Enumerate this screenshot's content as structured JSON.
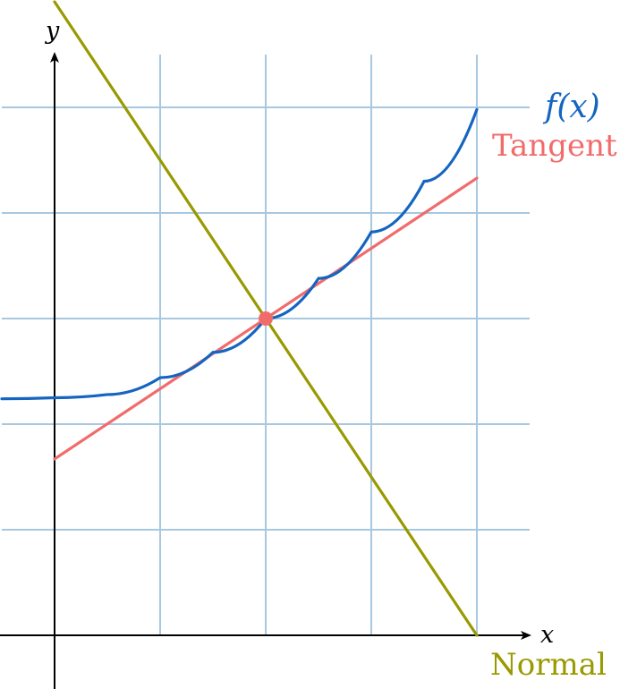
{
  "chart_data": {
    "type": "line",
    "xlim": [
      -0.5,
      4.5
    ],
    "ylim": [
      -0.5,
      6
    ],
    "grid": true,
    "xlabel": "x",
    "ylabel": "y",
    "point_of_tangency": {
      "x": 2,
      "y": 3
    },
    "series": [
      {
        "name": "f(x)",
        "color": "#1565c0",
        "x": [
          -0.5,
          0,
          0.5,
          1,
          1.5,
          2,
          2.5,
          3,
          3.5,
          4
        ],
        "y": [
          2.24,
          2.25,
          2.28,
          2.44,
          2.68,
          3.0,
          3.38,
          3.82,
          4.3,
          4.98
        ]
      },
      {
        "name": "Tangent",
        "color": "#f26b6b",
        "x": [
          0,
          4
        ],
        "y": [
          1.67,
          4.33
        ]
      },
      {
        "name": "Normal",
        "color": "#999900",
        "x": [
          0,
          4
        ],
        "y": [
          6,
          0
        ]
      }
    ]
  },
  "labels": {
    "x_axis": "x",
    "y_axis": "y",
    "fx": "f(x)",
    "tangent": "Tangent",
    "normal": "Normal"
  },
  "colors": {
    "grid": "#a7c8e1",
    "axis": "#000000",
    "fx": "#1565c0",
    "tangent": "#f26b6b",
    "normal": "#999900"
  }
}
